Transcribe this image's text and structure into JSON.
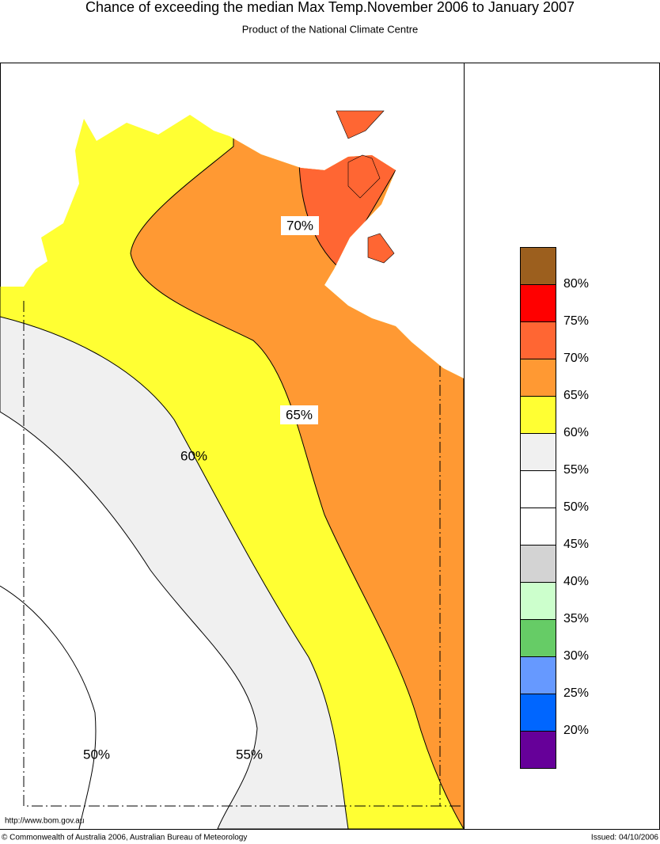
{
  "header": {
    "title": "Chance of exceeding the median Max Temp.November 2006 to January 2007",
    "subtitle": "Product of the National Climate Centre"
  },
  "map": {
    "contour_labels": [
      "70%",
      "65%",
      "60%",
      "50%",
      "55%"
    ]
  },
  "legend": {
    "colors": [
      "#9c5f1e",
      "#ff0000",
      "#ff6633",
      "#ff9933",
      "#ffff33",
      "#f0f0f0",
      "#ffffff",
      "#ffffff",
      "#d3d3d3",
      "#ccffcc",
      "#66cc66",
      "#6699ff",
      "#0066ff",
      "#660099"
    ],
    "labels": [
      "80%",
      "75%",
      "70%",
      "65%",
      "60%",
      "55%",
      "50%",
      "45%",
      "40%",
      "35%",
      "30%",
      "25%",
      "20%"
    ]
  },
  "footer": {
    "url": "http://www.bom.gov.au",
    "copyright": "© Commonwealth of Australia 2006, Australian Bureau of Meteorology",
    "issued": "Issued: 04/10/2006"
  }
}
